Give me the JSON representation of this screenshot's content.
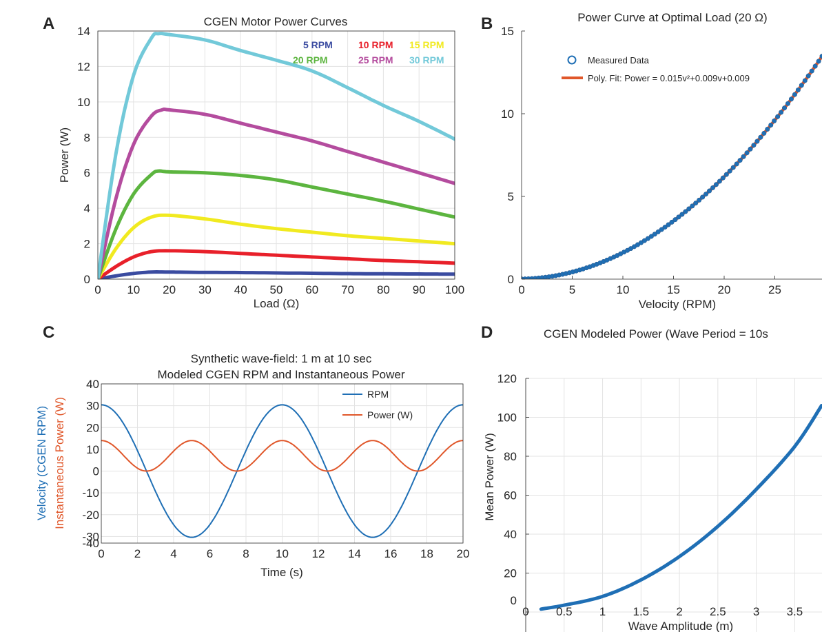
{
  "chart_data": [
    {
      "panel": "A",
      "type": "line",
      "title": "CGEN Motor Power Curves",
      "xlabel": "Load (Ω)",
      "ylabel": "Power (W)",
      "xlim": [
        0,
        100
      ],
      "ylim": [
        0,
        14
      ],
      "xticks": [
        0,
        10,
        20,
        30,
        40,
        50,
        60,
        70,
        80,
        90,
        100
      ],
      "yticks": [
        0,
        2,
        4,
        6,
        8,
        10,
        12,
        14
      ],
      "grid": true,
      "legend_position": "top-right",
      "series": [
        {
          "name": "5 RPM",
          "color": "#3a4ba0",
          "points": [
            [
              0,
              0
            ],
            [
              5,
              0.18
            ],
            [
              10,
              0.32
            ],
            [
              15,
              0.4
            ],
            [
              20,
              0.4
            ],
            [
              30,
              0.38
            ],
            [
              40,
              0.37
            ],
            [
              50,
              0.35
            ],
            [
              60,
              0.33
            ],
            [
              70,
              0.31
            ],
            [
              80,
              0.3
            ],
            [
              90,
              0.29
            ],
            [
              100,
              0.28
            ]
          ]
        },
        {
          "name": "10 RPM",
          "color": "#e8202a",
          "points": [
            [
              0,
              0
            ],
            [
              5,
              0.7
            ],
            [
              10,
              1.25
            ],
            [
              15,
              1.55
            ],
            [
              20,
              1.6
            ],
            [
              30,
              1.55
            ],
            [
              40,
              1.45
            ],
            [
              50,
              1.35
            ],
            [
              60,
              1.25
            ],
            [
              70,
              1.15
            ],
            [
              80,
              1.05
            ],
            [
              90,
              0.98
            ],
            [
              100,
              0.9
            ]
          ]
        },
        {
          "name": "15 RPM",
          "color": "#f1ea20",
          "points": [
            [
              0,
              0
            ],
            [
              5,
              1.7
            ],
            [
              10,
              2.9
            ],
            [
              15,
              3.5
            ],
            [
              20,
              3.6
            ],
            [
              30,
              3.4
            ],
            [
              40,
              3.1
            ],
            [
              50,
              2.85
            ],
            [
              60,
              2.65
            ],
            [
              70,
              2.45
            ],
            [
              80,
              2.3
            ],
            [
              90,
              2.15
            ],
            [
              100,
              2.0
            ]
          ]
        },
        {
          "name": "20 RPM",
          "color": "#5cb53f",
          "points": [
            [
              0,
              0
            ],
            [
              5,
              2.8
            ],
            [
              10,
              4.8
            ],
            [
              15,
              5.9
            ],
            [
              17,
              6.1
            ],
            [
              20,
              6.05
            ],
            [
              30,
              6.0
            ],
            [
              40,
              5.85
            ],
            [
              50,
              5.6
            ],
            [
              60,
              5.2
            ],
            [
              70,
              4.8
            ],
            [
              80,
              4.4
            ],
            [
              90,
              3.95
            ],
            [
              100,
              3.5
            ]
          ]
        },
        {
          "name": "25 RPM",
          "color": "#b44c9e",
          "points": [
            [
              0,
              0
            ],
            [
              5,
              4.5
            ],
            [
              10,
              7.6
            ],
            [
              15,
              9.2
            ],
            [
              18,
              9.55
            ],
            [
              20,
              9.55
            ],
            [
              30,
              9.3
            ],
            [
              40,
              8.8
            ],
            [
              50,
              8.3
            ],
            [
              60,
              7.8
            ],
            [
              70,
              7.2
            ],
            [
              80,
              6.6
            ],
            [
              90,
              6.0
            ],
            [
              100,
              5.4
            ]
          ]
        },
        {
          "name": "30 RPM",
          "color": "#72c9d9",
          "points": [
            [
              0,
              0
            ],
            [
              5,
              7.0
            ],
            [
              10,
              11.5
            ],
            [
              15,
              13.6
            ],
            [
              17,
              13.85
            ],
            [
              20,
              13.8
            ],
            [
              30,
              13.5
            ],
            [
              40,
              12.9
            ],
            [
              50,
              12.35
            ],
            [
              60,
              11.75
            ],
            [
              70,
              10.8
            ],
            [
              80,
              9.8
            ],
            [
              90,
              8.9
            ],
            [
              100,
              7.9
            ]
          ]
        }
      ]
    },
    {
      "panel": "B",
      "type": "scatter",
      "title": "Power Curve at Optimal Load (20 Ω)",
      "xlabel": "Velocity (RPM)",
      "ylabel": "",
      "xlim": [
        0,
        30
      ],
      "ylim": [
        0,
        15
      ],
      "xticks": [
        0,
        5,
        10,
        15,
        20,
        25
      ],
      "yticks": [
        0,
        5,
        10,
        15
      ],
      "grid": false,
      "legend_position": "top-left",
      "series": [
        {
          "name": "Measured Data",
          "color": "#1f6fb5",
          "marker": "circle",
          "x_range": [
            0,
            30
          ],
          "n_points": 90
        },
        {
          "name": "Poly. Fit: Power = 0.015v²+0.009v+0.009",
          "color": "#e0572a",
          "fit": {
            "a": 0.015,
            "b": 0.009,
            "c": 0.009
          }
        }
      ]
    },
    {
      "panel": "C",
      "type": "line",
      "title": "Synthetic wave-field: 1 m at 10 sec",
      "subtitle": "Modeled CGEN RPM and Instantaneous Power",
      "xlabel": "Time (s)",
      "ylabel": "Velocity (CGEN RPM)",
      "ylabel2": "Instantaneous Power (W)",
      "xlim": [
        0,
        20
      ],
      "ylim": [
        -40,
        40
      ],
      "xticks": [
        0,
        2,
        4,
        6,
        8,
        10,
        12,
        14,
        16,
        18,
        20
      ],
      "yticks": [
        -40,
        -30,
        -20,
        -10,
        0,
        10,
        20,
        30,
        40
      ],
      "grid": true,
      "legend_position": "top-right",
      "series": [
        {
          "name": "RPM",
          "color": "#1f6fb5",
          "amplitude": 30.4,
          "period_s": 10
        },
        {
          "name": "Power (W)",
          "color": "#e0572a",
          "peak": 14.0,
          "period_s": 5
        }
      ]
    },
    {
      "panel": "D",
      "type": "line",
      "title": "CGEN Modeled Power (Wave Period = 10s",
      "xlabel": "Wave Amplitude (m)",
      "ylabel": "Mean Power (W)",
      "xlim": [
        0,
        3.9
      ],
      "ylim": [
        0,
        120
      ],
      "xticks": [
        0,
        0.5,
        1,
        1.5,
        2,
        2.5,
        3,
        3.5
      ],
      "yticks": [
        0,
        20,
        40,
        60,
        80,
        100,
        120
      ],
      "grid": true,
      "series": [
        {
          "name": "",
          "color": "#1f6fb5",
          "points": [
            [
              0.2,
              1.5
            ],
            [
              0.5,
              3.5
            ],
            [
              1,
              8
            ],
            [
              1.5,
              16.5
            ],
            [
              2,
              28.5
            ],
            [
              2.5,
              44
            ],
            [
              3,
              63
            ],
            [
              3.5,
              85
            ],
            [
              3.85,
              106
            ]
          ]
        }
      ]
    }
  ],
  "panels": {
    "A": {
      "letter": "A"
    },
    "B": {
      "letter": "B"
    },
    "C": {
      "letter": "C"
    },
    "D": {
      "letter": "D"
    }
  }
}
